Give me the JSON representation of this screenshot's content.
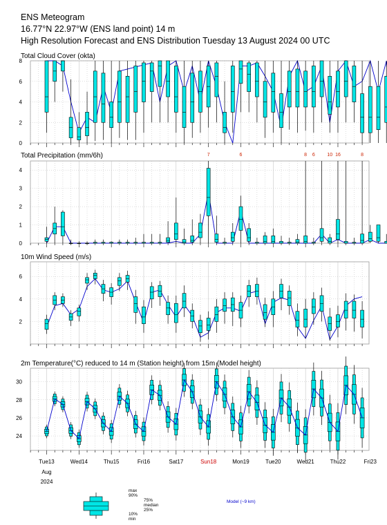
{
  "header": {
    "line1": "ENS Meteogram",
    "line2": "16.77°N 22.97°W (ENS land point) 14 m",
    "line3": "High Resolution Forecast and ENS Distribution Tuesday 13 August 2024 00 UTC"
  },
  "colors": {
    "box_fill": "#00e5e5",
    "box_stroke": "#000000",
    "hres_line": "#0000cc",
    "grid": "#bbbbbb",
    "sunday": "#cc0000",
    "annotation": "#cc2200"
  },
  "legend": {
    "max": "max",
    "p90": "90%",
    "p75": "75%",
    "median": "median",
    "p25": "25%",
    "p10": "10%",
    "min": "min",
    "model": "Model (~9 km)"
  },
  "chart_data": [
    {
      "type": "box",
      "title": "Total Cloud Cover (okta)",
      "ylim": [
        0,
        8
      ],
      "yticks": [
        0,
        2,
        4,
        6,
        8
      ],
      "median": [
        4.5,
        7,
        8,
        1.5,
        0.6,
        1.5,
        4.5,
        3.8,
        2.5,
        4,
        4.5,
        5,
        6,
        7,
        7.5,
        6,
        4.5,
        3,
        4,
        5,
        5.5,
        6.5,
        1.5,
        5,
        7.2,
        6.7,
        6,
        4,
        5,
        3,
        5,
        5,
        5,
        5,
        6,
        4,
        5,
        6,
        5.5,
        2.5,
        2.5,
        2.5,
        3.5,
        4
      ],
      "p25": [
        3,
        6,
        7,
        0.5,
        0.3,
        0.7,
        2,
        2,
        1.5,
        2,
        2,
        3,
        4,
        5,
        5.5,
        4.5,
        3,
        1.5,
        2,
        3,
        3.5,
        4.5,
        1,
        3,
        5.8,
        5,
        4.5,
        2.5,
        3,
        1.5,
        3.5,
        3.5,
        3.5,
        3.5,
        4.5,
        2.8,
        3.5,
        4.5,
        4,
        1,
        1,
        1.3,
        2,
        1.7
      ],
      "p75": [
        8,
        8,
        8,
        2.5,
        1.5,
        3,
        7,
        6.8,
        4,
        7,
        6.5,
        7.5,
        7.8,
        7.8,
        8,
        8,
        7.5,
        5.5,
        6.8,
        7,
        7.5,
        7.8,
        3,
        7.5,
        8,
        7.8,
        7.8,
        6,
        6.8,
        4.8,
        7,
        7.2,
        7,
        7.5,
        8,
        6.5,
        7,
        8,
        7.5,
        4.8,
        5.5,
        5.5,
        6.5,
        5.5
      ],
      "min": [
        1,
        4,
        5,
        0,
        0,
        0,
        0.2,
        0.3,
        0,
        0.5,
        0.3,
        0.3,
        1,
        2,
        2,
        2,
        1,
        0,
        0.5,
        1,
        1.5,
        2,
        0,
        1,
        3,
        3,
        2,
        0.5,
        1,
        0,
        1.3,
        1,
        1.2,
        1,
        2,
        1,
        1,
        2,
        2,
        0,
        0,
        0,
        0,
        0
      ],
      "max": [
        8,
        8,
        8,
        6.2,
        3,
        5,
        8,
        8,
        8,
        8,
        8,
        8,
        8,
        8,
        8,
        8,
        8,
        8,
        8,
        8,
        8,
        8,
        6,
        8,
        8,
        8,
        8,
        8,
        8,
        8,
        8,
        8,
        8,
        8,
        8,
        8,
        8,
        8,
        8,
        8,
        8,
        8,
        8,
        8
      ],
      "hres": [
        8,
        8,
        7.5,
        4,
        1,
        2.5,
        2,
        5.5,
        3,
        7,
        7.2,
        7.4,
        7.6,
        7.8,
        4,
        7.5,
        8,
        5,
        7.5,
        4,
        8,
        5.5,
        2,
        0,
        7.5,
        7.5,
        7.8,
        6.5,
        5,
        1.5,
        6.5,
        8,
        5,
        5.5,
        7.5,
        2,
        7,
        8,
        5.5,
        6,
        8,
        5,
        8,
        2
      ]
    },
    {
      "type": "box",
      "title": "Total Precipitation (mm/6h)",
      "ylim": [
        0,
        4.5
      ],
      "yticks": [
        0,
        1,
        2,
        3,
        4
      ],
      "median": [
        0.2,
        0.8,
        0.9,
        0,
        0,
        0,
        0,
        0,
        0,
        0,
        0,
        0,
        0,
        0,
        0,
        0.15,
        0.5,
        0.05,
        0.15,
        0.6,
        2.5,
        0.2,
        0,
        0.3,
        1.3,
        0.3,
        0,
        0.1,
        0.1,
        0,
        0,
        0.05,
        0.1,
        0,
        0.3,
        0.1,
        0.5,
        0,
        0,
        0.15,
        0.25,
        0.3,
        0,
        0
      ],
      "p25": [
        0.1,
        0.5,
        0.4,
        0,
        0,
        0,
        0,
        0,
        0,
        0,
        0,
        0,
        0,
        0,
        0,
        0.05,
        0.2,
        0,
        0.05,
        0.3,
        1.5,
        0.05,
        0,
        0.1,
        0.7,
        0.1,
        0,
        0,
        0,
        0,
        0,
        0,
        0,
        0,
        0.1,
        0,
        0.2,
        0,
        0,
        0,
        0.1,
        0.1,
        0,
        0
      ],
      "p75": [
        0.3,
        1.1,
        1.7,
        0,
        0,
        0,
        0.05,
        0.05,
        0.05,
        0.05,
        0.05,
        0.05,
        0.05,
        0.05,
        0.05,
        0.3,
        1.1,
        0.2,
        0.4,
        1.1,
        4.1,
        0.5,
        0.05,
        0.6,
        2,
        0.8,
        0.05,
        0.4,
        0.4,
        0.1,
        0.05,
        0.2,
        0.4,
        0.05,
        0.8,
        0.3,
        1.3,
        0.1,
        0.05,
        0.5,
        0.6,
        1,
        0.1,
        0.05
      ],
      "min": [
        0,
        0,
        0,
        0,
        0,
        0,
        0,
        0,
        0,
        0,
        0,
        0,
        0,
        0,
        0,
        0,
        0,
        0,
        0,
        0,
        0,
        0,
        0,
        0,
        0,
        0,
        0,
        0,
        0,
        0,
        0,
        0,
        0,
        0,
        0,
        0,
        0,
        0,
        0,
        0,
        0,
        0,
        0,
        0
      ],
      "max": [
        0.9,
        2,
        1.8,
        0.2,
        0.1,
        0.1,
        0.2,
        0.2,
        0.1,
        0.2,
        0.2,
        0.3,
        0.5,
        0.5,
        0.5,
        1.2,
        2.5,
        0.8,
        1.3,
        1.6,
        4.5,
        1.5,
        0.3,
        1.1,
        2.6,
        1.1,
        0.3,
        0.6,
        0.8,
        0.4,
        0.3,
        0.5,
        4.5,
        0.3,
        4.5,
        0.5,
        4.5,
        4.5,
        0.3,
        4.5,
        1,
        1,
        0.5,
        0.3
      ],
      "hres": [
        0,
        0.9,
        0.9,
        0,
        0,
        0,
        0,
        0,
        0,
        0,
        0,
        0,
        0,
        0,
        0,
        0,
        0.1,
        0,
        0,
        0.5,
        2.8,
        0,
        0,
        0,
        1.8,
        0,
        0,
        0,
        0,
        0,
        0,
        0,
        0,
        0,
        0.5,
        0,
        0.2,
        0,
        0,
        0,
        0.2,
        0,
        0,
        0
      ],
      "annotations": [
        {
          "index": 20,
          "label": "7"
        },
        {
          "index": 24,
          "label": "6"
        },
        {
          "index": 32,
          "label": "8"
        },
        {
          "index": 33,
          "label": "6"
        },
        {
          "index": 35,
          "label": "10"
        },
        {
          "index": 36,
          "label": "16"
        },
        {
          "index": 39,
          "label": "8"
        }
      ]
    },
    {
      "type": "box",
      "title": "10m Wind Speed (m/s)",
      "ylim": [
        0,
        7.3
      ],
      "yticks": [
        2,
        4,
        6
      ],
      "median": [
        1.8,
        3.9,
        3.9,
        2.4,
        2.9,
        5.7,
        6.1,
        4.9,
        4.6,
        5.6,
        5.8,
        3.6,
        2.4,
        4.6,
        4.7,
        3.2,
        2.6,
        3.8,
        2.5,
        1.6,
        1.7,
        2.6,
        3.4,
        3.5,
        3,
        4.7,
        4.7,
        2.8,
        3.3,
        4.7,
        4.1,
        2.1,
        2.2,
        3.3,
        3.6,
        1.8,
        2,
        3,
        3,
        2.2
      ],
      "p25": [
        1.3,
        3.5,
        3.6,
        2.1,
        2.5,
        5.4,
        5.8,
        4.5,
        4.2,
        5.2,
        5.5,
        2.8,
        1.8,
        4,
        4.2,
        2.6,
        1.9,
        3.2,
        2,
        1,
        1.2,
        2,
        2.9,
        2.9,
        2.3,
        4.2,
        4.2,
        2.2,
        2.6,
        4.1,
        3.4,
        1.5,
        1.5,
        2.7,
        2.9,
        1.2,
        1.5,
        2.3,
        2.3,
        1.5
      ],
      "p75": [
        2.2,
        4.3,
        4.2,
        2.7,
        3.2,
        5.9,
        6.3,
        5.3,
        5,
        5.9,
        6.1,
        4.2,
        3.3,
        5.1,
        5.2,
        3.7,
        3.6,
        4.5,
        3,
        2.1,
        2.3,
        3.3,
        4,
        4.1,
        3.7,
        5.2,
        5.3,
        3.5,
        4,
        5.3,
        4.7,
        2.9,
        3.1,
        4,
        4.3,
        2.4,
        2.6,
        3.8,
        3.8,
        3
      ],
      "min": [
        0.9,
        3,
        3.3,
        1.6,
        2,
        4.8,
        5.3,
        3.8,
        3.5,
        4.7,
        4.8,
        1.8,
        1,
        3.2,
        3.4,
        1.8,
        1,
        2.4,
        1.4,
        0.2,
        0.4,
        1,
        1.8,
        1.6,
        1.5,
        3.3,
        3.5,
        1.5,
        1.5,
        3,
        2.6,
        0.7,
        0.5,
        1.7,
        2,
        0.3,
        0.6,
        1.2,
        1.1,
        0.5
      ],
      "max": [
        2.6,
        4.6,
        4.5,
        3,
        3.5,
        6.3,
        6.6,
        5.7,
        5.4,
        6.3,
        6.5,
        4.8,
        3.9,
        5.5,
        5.6,
        4.3,
        4.3,
        5.2,
        3.6,
        2.6,
        2.9,
        4,
        4.6,
        4.6,
        4.3,
        5.7,
        5.9,
        4.1,
        4.7,
        5.8,
        5.2,
        3.6,
        4,
        4.6,
        5,
        3.2,
        3.4,
        4.5,
        4.4,
        3.8
      ],
      "hres": [
        1.5,
        3.4,
        3.6,
        2.6,
        3.1,
        5.1,
        5.8,
        4.8,
        4.6,
        4.9,
        5.6,
        3.7,
        1.9,
        4.6,
        4.8,
        3.5,
        2.4,
        3.5,
        2.5,
        0.6,
        1,
        2.8,
        3.2,
        3.2,
        2.9,
        4.5,
        4.7,
        1.8,
        3.7,
        4.1,
        3.9,
        1.5,
        0.5,
        2.1,
        3.4,
        0.4,
        1.6,
        3.4,
        4,
        4.2
      ]
    },
    {
      "type": "box",
      "title": "2m Temperature(°C) reduced to 14 m (Station height) from 15m (Model height)",
      "ylim": [
        22.4,
        31.5
      ],
      "yticks": [
        24,
        26,
        28,
        30
      ],
      "median": [
        24.5,
        28.1,
        27.5,
        24.6,
        23.7,
        27.8,
        27,
        25.4,
        24.5,
        28.4,
        27.6,
        25.3,
        24.5,
        29.1,
        28.5,
        26.1,
        25.3,
        30.2,
        28.9,
        26.1,
        25,
        30,
        28.6,
        26.1,
        25,
        28.9,
        27.7,
        25.2,
        24.4,
        28.2,
        27.2,
        24.9,
        24.1,
        29.2,
        28.2,
        25.5,
        24.5,
        29.6,
        28.6,
        26
      ]
    }
  ],
  "xaxis": {
    "days": [
      {
        "label": "Tue13",
        "sunday": false
      },
      {
        "label": "Wed14",
        "sunday": false
      },
      {
        "label": "Thu15",
        "sunday": false
      },
      {
        "label": "Fri16",
        "sunday": false
      },
      {
        "label": "Sat17",
        "sunday": false
      },
      {
        "label": "Sun18",
        "sunday": true
      },
      {
        "label": "Mon19",
        "sunday": false
      },
      {
        "label": "Tue20",
        "sunday": false
      },
      {
        "label": "Wed21",
        "sunday": false
      },
      {
        "label": "Thu22",
        "sunday": false
      },
      {
        "label": "Fri23",
        "sunday": false
      }
    ],
    "month": "Aug",
    "year": "2024"
  }
}
